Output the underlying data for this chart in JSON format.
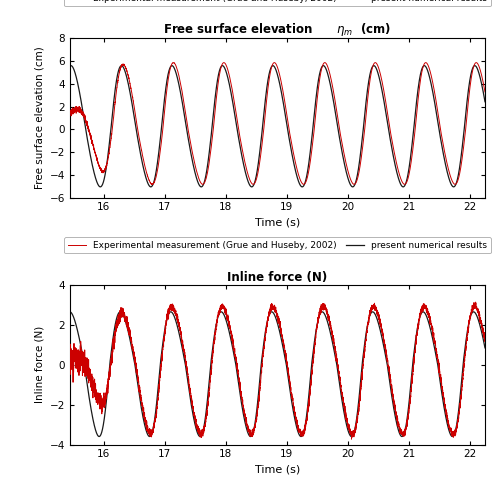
{
  "title1": "Free surface elevation      $\\eta_m$  (cm)",
  "title2": "Inline force (N)",
  "xlabel": "Time (s)",
  "ylabel1": "Free surface elevation (cm)",
  "ylabel2": "Inline force (N)",
  "xlim": [
    15.45,
    22.25
  ],
  "xticks": [
    16,
    17,
    18,
    19,
    20,
    21,
    22
  ],
  "ylim1": [
    -6,
    8
  ],
  "yticks1": [
    -6,
    -4,
    -2,
    0,
    2,
    4,
    6,
    8
  ],
  "ylim2": [
    -4,
    4
  ],
  "yticks2": [
    -4,
    -2,
    0,
    2,
    4
  ],
  "legend_exp": "Experimental measurement (Grue and Huseby, 2002)",
  "legend_num": "present numerical results",
  "color_exp": "#cc0000",
  "color_num": "#1a1a1a",
  "T": 0.827,
  "t_start": 15.45,
  "t_end": 22.25,
  "amp_num1": 6.3,
  "amp_exp1": 6.6,
  "trough_num1": -4.5,
  "amp_num2": 3.0,
  "amp_exp2": 3.3,
  "trough_num2": -3.2
}
